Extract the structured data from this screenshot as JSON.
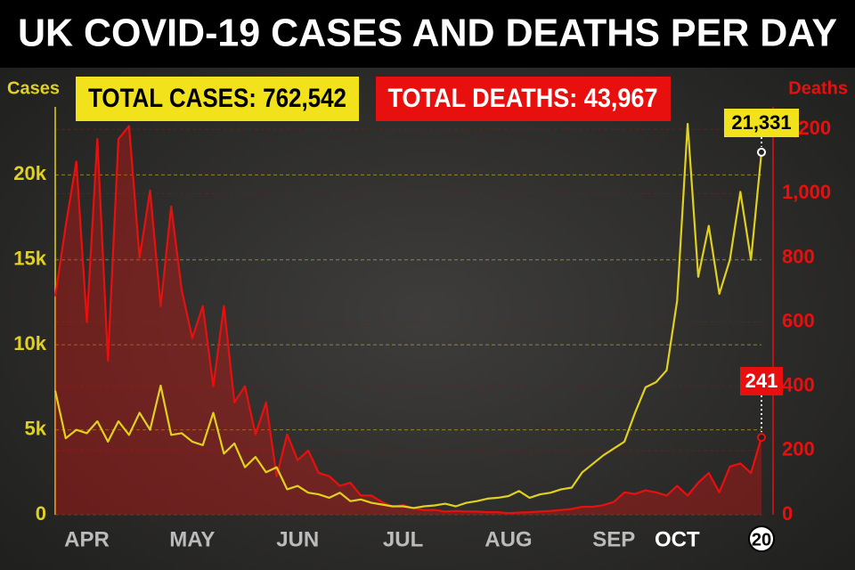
{
  "chart_data": {
    "type": "line",
    "title": "UK COVID-19 CASES AND DEATHS PER DAY",
    "annotations": [
      {
        "text": "TOTAL CASES: 762,542",
        "color": "#f2e21c"
      },
      {
        "text": "TOTAL DEATHS: 43,967",
        "color": "#e8100f"
      }
    ],
    "y_label": "Cases",
    "y2_label": "Deaths",
    "categories": [
      null,
      null,
      null,
      "APR",
      null,
      null,
      null,
      null,
      null,
      null,
      null,
      null,
      null,
      "MAY",
      null,
      null,
      null,
      null,
      null,
      null,
      null,
      null,
      null,
      "JUN",
      null,
      null,
      null,
      null,
      null,
      null,
      null,
      null,
      null,
      "JUL",
      null,
      null,
      null,
      null,
      null,
      null,
      null,
      null,
      null,
      "AUG",
      null,
      null,
      null,
      null,
      null,
      null,
      null,
      null,
      null,
      "SEP",
      null,
      null,
      null,
      null,
      null,
      "OCT",
      null,
      null,
      null,
      null,
      null,
      null,
      null,
      "20"
    ],
    "series": [
      {
        "color": "#e0d020",
        "values": [
          7300,
          4500,
          5000,
          4800,
          5500,
          4300,
          5500,
          4700,
          6000,
          5000,
          7600,
          4700,
          4800,
          4300,
          4100,
          6000,
          3600,
          4200,
          2800,
          3400,
          2500,
          2800,
          1500,
          1700,
          1300,
          1200,
          1000,
          1300,
          800,
          900,
          700,
          600,
          500,
          500,
          400,
          500,
          550,
          650,
          500,
          700,
          800,
          950,
          1000,
          1100,
          1400,
          1000,
          1200,
          1300,
          1500,
          1600,
          2500,
          3000,
          3500,
          3900,
          4300,
          6000,
          7500,
          7800,
          8500,
          12600,
          23000,
          14000,
          17000,
          13000,
          15000,
          19000,
          15000,
          21331
        ],
        "value_labels": [
          null,
          null,
          null,
          null,
          null,
          null,
          null,
          null,
          null,
          null,
          null,
          null,
          null,
          null,
          null,
          null,
          null,
          null,
          null,
          null,
          null,
          null,
          null,
          null,
          null,
          null,
          null,
          null,
          null,
          null,
          null,
          null,
          null,
          null,
          null,
          null,
          null,
          null,
          null,
          null,
          null,
          null,
          null,
          null,
          null,
          null,
          null,
          null,
          null,
          null,
          null,
          null,
          null,
          null,
          null,
          null,
          null,
          null,
          null,
          null,
          null,
          null,
          null,
          null,
          null,
          null,
          null,
          "21,331"
        ]
      },
      {
        "color": "#e8100f",
        "axis": "y2",
        "values": [
          680,
          900,
          1100,
          600,
          1170,
          480,
          1170,
          1210,
          800,
          1010,
          650,
          960,
          700,
          550,
          650,
          400,
          650,
          350,
          400,
          250,
          350,
          120,
          250,
          170,
          200,
          130,
          120,
          90,
          100,
          60,
          60,
          40,
          25,
          30,
          20,
          15,
          15,
          10,
          12,
          10,
          10,
          8,
          8,
          5,
          7,
          8,
          10,
          12,
          15,
          18,
          25,
          25,
          30,
          40,
          70,
          65,
          76,
          70,
          60,
          90,
          60,
          100,
          130,
          70,
          150,
          160,
          130,
          241
        ],
        "value_labels": [
          null,
          null,
          null,
          null,
          null,
          null,
          null,
          null,
          null,
          null,
          null,
          null,
          null,
          null,
          null,
          null,
          null,
          null,
          null,
          null,
          null,
          null,
          null,
          null,
          null,
          null,
          null,
          null,
          null,
          null,
          null,
          null,
          null,
          null,
          null,
          null,
          null,
          null,
          null,
          null,
          null,
          null,
          null,
          null,
          null,
          null,
          null,
          null,
          null,
          null,
          null,
          null,
          null,
          null,
          null,
          null,
          null,
          null,
          null,
          null,
          null,
          null,
          null,
          null,
          null,
          null,
          null,
          "241"
        ]
      }
    ],
    "ylim": [
      0,
      24000
    ],
    "yticks": [
      0,
      {
        "value": 5000,
        "label": "5k"
      },
      {
        "value": 10000,
        "label": "10k"
      },
      {
        "value": 15000,
        "label": "15k"
      },
      {
        "value": 20000,
        "label": "20k"
      }
    ],
    "y2lim": [
      0,
      1270
    ],
    "y2ticks": [
      0,
      200,
      400,
      600,
      800,
      {
        "value": 1000,
        "label": "1,000"
      },
      {
        "value": 1200,
        "label": "1,200"
      }
    ],
    "grid": true
  }
}
